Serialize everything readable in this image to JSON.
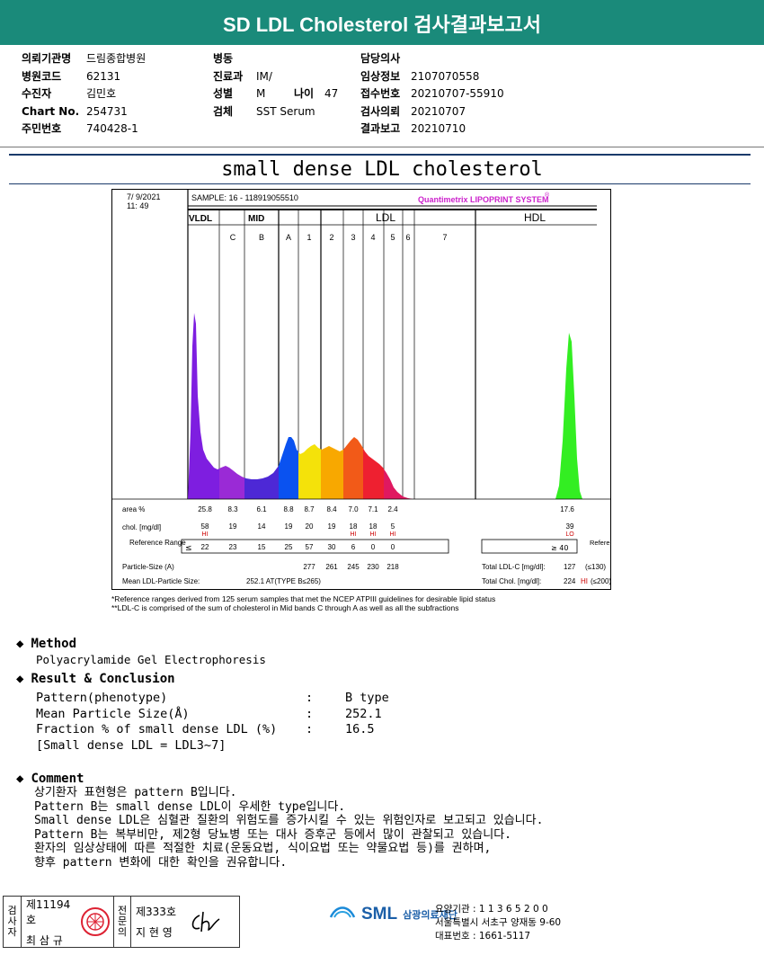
{
  "title": "SD LDL Cholesterol 검사결과보고서",
  "header": {
    "col1": [
      {
        "label": "의뢰기관명",
        "value": "드림종합병원"
      },
      {
        "label": "병원코드",
        "value": "62131"
      },
      {
        "label": "수진자",
        "value": "김민호"
      },
      {
        "label": "Chart No.",
        "value": "254731"
      },
      {
        "label": "주민번호",
        "value": "740428-1"
      }
    ],
    "col2": [
      {
        "label": "병동",
        "value": ""
      },
      {
        "label": "진료과",
        "value": "IM/"
      },
      {
        "label": "성별",
        "value": "M"
      },
      {
        "label": "검체",
        "value": "SST Serum"
      }
    ],
    "age_label": "나이",
    "age_value": "47",
    "col3": [
      {
        "label": "담당의사",
        "value": ""
      },
      {
        "label": "임상정보",
        "value": "2107070558"
      },
      {
        "label": "접수번호",
        "value": "20210707-55910"
      },
      {
        "label": "검사의뢰",
        "value": "20210707"
      },
      {
        "label": "결과보고",
        "value": "20210710"
      }
    ]
  },
  "doc_title": "small dense LDL cholesterol",
  "chart_data": {
    "type": "area",
    "date": "7/ 9/2021",
    "time": "11: 49",
    "sample": "SAMPLE:   16 - 118919055510",
    "system": "Quantimetrix LIPOPRINT SYSTEM",
    "system_mark": "®",
    "groups": [
      "VLDL",
      "MID",
      "LDL",
      "HDL"
    ],
    "bands": [
      "C",
      "B",
      "A",
      "1",
      "2",
      "3",
      "4",
      "5",
      "6",
      "7"
    ],
    "fraction_colors": [
      "#7e1ee0",
      "#9a2ad6",
      "#4d28d6",
      "#0a52f0",
      "#f4e20a",
      "#f8a800",
      "#f25a18",
      "#ee2030",
      "#e01860",
      "#33ee22"
    ],
    "area_pct_label": "area %",
    "area_pct": [
      "25.8",
      "8.3",
      "6.1",
      "8.8",
      "8.7",
      "8.4",
      "7.0",
      "7.1",
      "2.4"
    ],
    "hdl_area_pct": "17.6",
    "chol_label": "chol. [mg/dl]",
    "chol": [
      "58",
      "19",
      "14",
      "19",
      "20",
      "19",
      "18",
      "18",
      "5"
    ],
    "chol_flags": [
      "HI",
      "",
      "",
      "",
      "",
      "",
      "HI",
      "HI",
      "HI"
    ],
    "hdl_chol": "39",
    "hdl_flag": "LO",
    "reference_label": "Reference Range",
    "ref_sign": "≤",
    "reference": [
      "22",
      "23",
      "15",
      "25",
      "57",
      "30",
      "6",
      "0",
      "0"
    ],
    "hdl_ref": "≥ 40",
    "particle_label": "Particle-Size (A)",
    "particle": [
      "277",
      "261",
      "245",
      "230",
      "218"
    ],
    "mean_label": "Mean LDL-Particle Size:",
    "mean_value": "252.1 AT(TYPE B≤265)",
    "total_ldl_label": "Total LDL-C [mg/dl]:",
    "total_ldl": "127",
    "total_ldl_ref": "(≤130)",
    "total_chol_label": "Total Chol. [mg/dl]:",
    "total_chol": "224",
    "total_chol_flag": "HI",
    "total_chol_ref": "(≤200)",
    "right_ref_label": "Reference Range"
  },
  "footnotes": [
    "*Reference ranges derived from 125 serum samples that met the NCEP ATPIII guidelines for desirable lipid status",
    "**LDL-C is comprised of the sum of cholesterol in Mid bands C through A as well as all the subfractions"
  ],
  "method": {
    "heading": "Method",
    "text": "Polyacrylamide Gel Electrophoresis"
  },
  "result": {
    "heading": "Result & Conclusion",
    "rows": [
      {
        "label": "Pattern(phenotype)",
        "colon": ":",
        "value": "B type"
      },
      {
        "label": "Mean Particle Size(Å)",
        "colon": ":",
        "value": "252.1"
      },
      {
        "label": "Fraction % of small dense LDL (%)",
        "colon": ":",
        "value": "16.5"
      }
    ],
    "note": "[Small dense LDL = LDL3~7]"
  },
  "comment": {
    "heading": "Comment",
    "lines": [
      "상기환자 표현형은 pattern B입니다.",
      "Pattern B는 small dense LDL이 우세한 type입니다.",
      "Small dense LDL은 심혈관 질환의 위험도를 증가시킬 수 있는 위험인자로 보고되고 있습니다.",
      "Pattern B는 복부비만, 제2형 당뇨병 또는 대사 증후군 등에서 많이 관찰되고 있습니다.",
      "환자의 임상상태에 따른 적절한 치료(운동요법, 식이요법 또는 약물요법 등)를 권하며,",
      "향후 pattern 변화에 대한 확인을 권유합니다."
    ]
  },
  "signature": {
    "tester_label": "검사자",
    "tester_no": "제11194호",
    "tester_name": "최 삼 규",
    "doctor_label": "전문의",
    "doctor_no": "제333호",
    "doctor_name": "지 현 영"
  },
  "institution": {
    "logo": "SML",
    "name": "삼광의료재단",
    "lines": [
      "요양기관 : 1 1 3 6 5 2 0 0",
      "서울특별시 서초구 양재동 9-60",
      "대표번호 : 1661-5117"
    ]
  }
}
